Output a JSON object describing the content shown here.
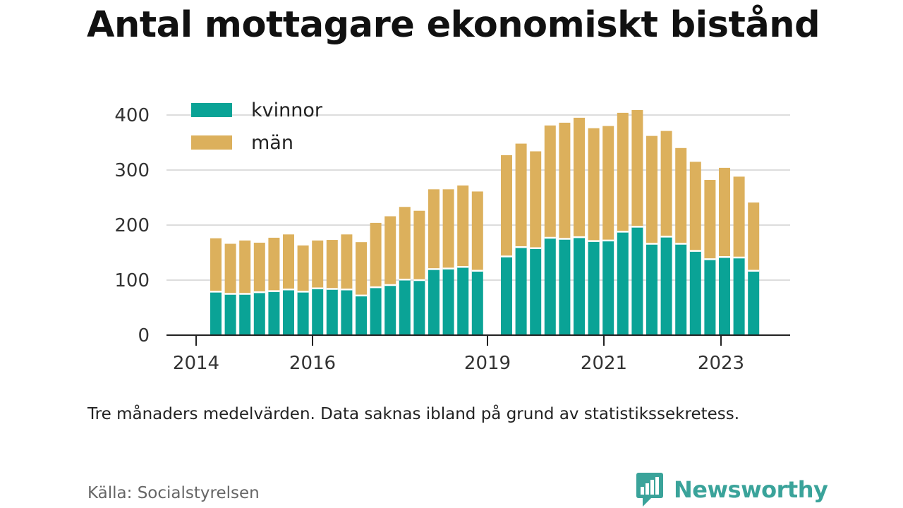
{
  "title": "Antal mottagare ekonomiskt bistånd",
  "note": "Tre månaders medelvärden. Data saknas ibland på grund av statistikssekretess.",
  "source": "Källa: Socialstyrelsen",
  "brand": {
    "name": "Newsworthy",
    "logo_icon": "bar-chart-speech-bubble-icon",
    "color": "#3aa39a"
  },
  "chart_data": {
    "type": "bar",
    "stacked": true,
    "title": "Antal mottagare ekonomiskt bistånd",
    "xlabel": "",
    "ylabel": "",
    "ylim": [
      0,
      420
    ],
    "yticks": [
      0,
      100,
      200,
      300,
      400
    ],
    "xticks": [
      "2014",
      "2016",
      "2019",
      "2021",
      "2023"
    ],
    "grid": true,
    "legend_placement": "top-left",
    "categories": [
      "2014 Q2",
      "2014 Q3",
      "2014 Q4",
      "2015 Q1",
      "2015 Q2",
      "2015 Q3",
      "2015 Q4",
      "2016 Q1",
      "2016 Q2",
      "2016 Q3",
      "2016 Q4",
      "2017 Q1",
      "2017 Q2",
      "2017 Q3",
      "2017 Q4",
      "2018 Q1",
      "2018 Q2",
      "2018 Q3",
      "2018 Q4",
      "2019 Q1",
      "2019 Q2",
      "2019 Q3",
      "2019 Q4",
      "2020 Q1",
      "2020 Q2",
      "2020 Q3",
      "2020 Q4",
      "2021 Q1",
      "2021 Q2",
      "2021 Q3",
      "2021 Q4",
      "2022 Q1",
      "2022 Q2",
      "2022 Q3",
      "2022 Q4",
      "2023 Q1",
      "2023 Q2",
      "2023 Q3",
      "2023 Q4"
    ],
    "series": [
      {
        "name": "kvinnor",
        "color": "#0aa396",
        "values": [
          79,
          75,
          75,
          78,
          80,
          83,
          79,
          85,
          84,
          83,
          72,
          87,
          91,
          101,
          100,
          120,
          121,
          124,
          117,
          null,
          143,
          160,
          158,
          177,
          175,
          178,
          171,
          172,
          188,
          197,
          166,
          179,
          166,
          153,
          138,
          142,
          141,
          117,
          null
        ]
      },
      {
        "name": "män",
        "color": "#dcb05c",
        "values": [
          97,
          91,
          97,
          90,
          97,
          100,
          84,
          87,
          89,
          100,
          97,
          117,
          125,
          132,
          126,
          145,
          144,
          148,
          144,
          null,
          184,
          188,
          176,
          204,
          211,
          217,
          205,
          208,
          216,
          212,
          196,
          192,
          174,
          162,
          144,
          162,
          147,
          124,
          null
        ]
      }
    ]
  }
}
